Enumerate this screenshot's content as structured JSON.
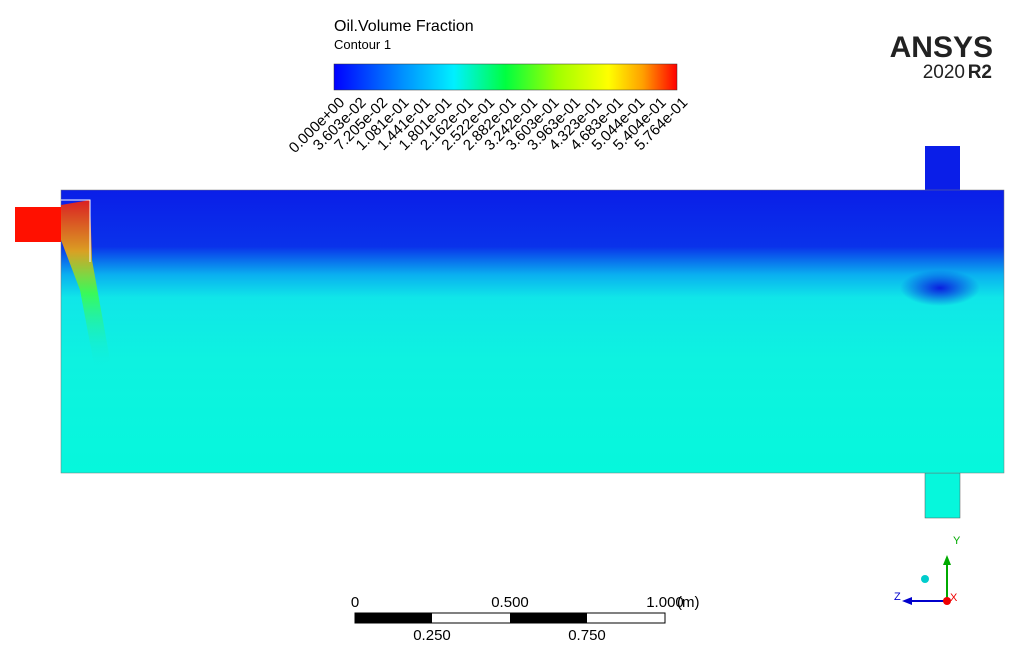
{
  "legend": {
    "title": "Oil.Volume Fraction",
    "subtitle": "Contour 1",
    "labels": [
      "0.000e+00",
      "3.603e-02",
      "7.205e-02",
      "1.081e-01",
      "1.441e-01",
      "1.801e-01",
      "2.162e-01",
      "2.522e-01",
      "2.882e-01",
      "3.242e-01",
      "3.603e-01",
      "3.963e-01",
      "4.323e-01",
      "4.683e-01",
      "5.044e-01",
      "5.404e-01",
      "5.764e-01"
    ]
  },
  "logo": {
    "name": "ANSYS",
    "year": "2020",
    "release": "R2"
  },
  "scale_bar": {
    "top": [
      "0",
      "0.500",
      "1.000"
    ],
    "unit": "(m)",
    "bottom": [
      "0.250",
      "0.750"
    ]
  },
  "triad": {
    "y": "Y",
    "z": "Z",
    "x": "X"
  }
}
